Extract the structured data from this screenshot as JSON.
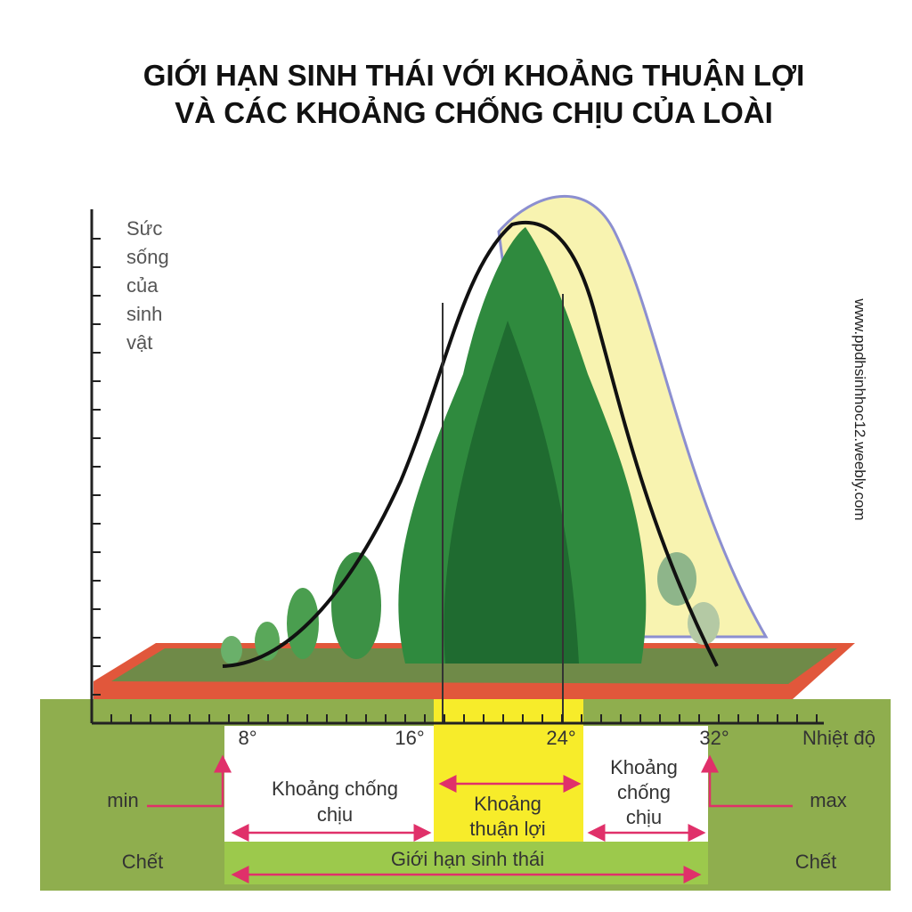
{
  "title": [
    "GIỚI HẠN SINH THÁI VỚI KHOẢNG THUẬN LỢI",
    "VÀ CÁC KHOẢNG CHỐNG CHỊU CỦA LOÀI"
  ],
  "y_axis_label": [
    "Sức",
    "sống",
    "của",
    "sinh",
    "vật"
  ],
  "x_axis_label": "Nhiệt độ",
  "x_ticks": [
    "8°",
    "16°",
    "24°",
    "32°"
  ],
  "watermark": "www.ppdhsinhhoc12.weebly.com",
  "zones": {
    "min": "min",
    "max": "max",
    "death_left": "Chết",
    "death_right": "Chết",
    "tolerance_left": [
      "Khoảng chống",
      "chịu"
    ],
    "optimal": [
      "Khoảng",
      "thuận lợi"
    ],
    "tolerance_right": [
      "Khoảng",
      "chống",
      "chịu"
    ],
    "ecological_limit": "Giới hạn sinh thái"
  }
}
